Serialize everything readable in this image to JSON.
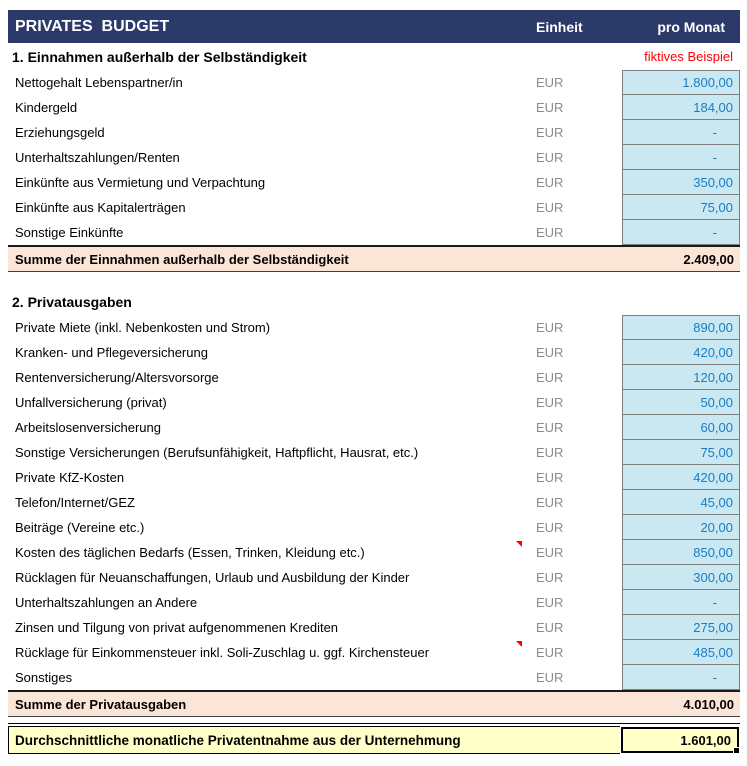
{
  "header": {
    "title": "PRIVATES  BUDGET",
    "unit_col": "Einheit",
    "value_col": "pro Monat"
  },
  "income": {
    "heading": "1. Einnahmen außerhalb der Selbständigkeit",
    "note": "fiktives Beispiel",
    "rows": [
      {
        "label": "Nettogehalt Lebenspartner/in",
        "unit": "EUR",
        "value": "1.800,00"
      },
      {
        "label": "Kindergeld",
        "unit": "EUR",
        "value": "184,00"
      },
      {
        "label": "Erziehungsgeld",
        "unit": "EUR",
        "value": "-"
      },
      {
        "label": "Unterhaltszahlungen/Renten",
        "unit": "EUR",
        "value": "-"
      },
      {
        "label": "Einkünfte aus Vermietung und Verpachtung",
        "unit": "EUR",
        "value": "350,00"
      },
      {
        "label": "Einkünfte aus Kapitalerträgen",
        "unit": "EUR",
        "value": "75,00"
      },
      {
        "label": "Sonstige Einkünfte",
        "unit": "EUR",
        "value": "-"
      }
    ],
    "sum": {
      "label": "Summe der Einnahmen außerhalb der Selbständigkeit",
      "value": "2.409,00"
    }
  },
  "expenses": {
    "heading": "2. Privatausgaben",
    "rows": [
      {
        "label": "Private Miete (inkl. Nebenkosten und Strom)",
        "unit": "EUR",
        "value": "890,00"
      },
      {
        "label": "Kranken- und Pflegeversicherung",
        "unit": "EUR",
        "value": "420,00"
      },
      {
        "label": "Rentenversicherung/Altersvorsorge",
        "unit": "EUR",
        "value": "120,00"
      },
      {
        "label": "Unfallversicherung (privat)",
        "unit": "EUR",
        "value": "50,00"
      },
      {
        "label": "Arbeitslosenversicherung",
        "unit": "EUR",
        "value": "60,00"
      },
      {
        "label": "Sonstige Versicherungen (Berufsunfähigkeit, Haftpflicht, Hausrat, etc.)",
        "unit": "EUR",
        "value": "75,00"
      },
      {
        "label": "Private KfZ-Kosten",
        "unit": "EUR",
        "value": "420,00"
      },
      {
        "label": "Telefon/Internet/GEZ",
        "unit": "EUR",
        "value": "45,00"
      },
      {
        "label": "Beiträge (Vereine etc.)",
        "unit": "EUR",
        "value": "20,00"
      },
      {
        "label": "Kosten des täglichen Bedarfs (Essen, Trinken, Kleidung etc.)",
        "unit": "EUR",
        "value": "850,00",
        "comment": true
      },
      {
        "label": "Rücklagen für Neuanschaffungen, Urlaub und Ausbildung der Kinder",
        "unit": "EUR",
        "value": "300,00"
      },
      {
        "label": "Unterhaltszahlungen an Andere",
        "unit": "EUR",
        "value": "-"
      },
      {
        "label": "Zinsen und Tilgung von privat aufgenommenen Krediten",
        "unit": "EUR",
        "value": "275,00"
      },
      {
        "label": "Rücklage für Einkommensteuer inkl. Soli-Zuschlag u. ggf. Kirchensteuer",
        "unit": "EUR",
        "value": "485,00",
        "comment": true
      },
      {
        "label": "Sonstiges",
        "unit": "EUR",
        "value": "-"
      }
    ],
    "sum": {
      "label": "Summe der Privatausgaben",
      "value": "4.010,00"
    }
  },
  "result": {
    "label": "Durchschnittliche monatliche Privatentnahme aus der Unternehmung",
    "value": "1.601,00"
  },
  "colors": {
    "header_bg": "#2B3A69",
    "header_text": "#FFFFFF",
    "cell_fill": "#C9E8F2",
    "value_text": "#1A7DC4",
    "unit_text": "#8C8C8C",
    "cell_border": "#7F7F7F",
    "sum_bg": "#FBE5D6",
    "result_bg": "#FFFFC8",
    "note_red": "#FF0000",
    "comment_red": "#FF0000",
    "selection_border": "#000000"
  }
}
